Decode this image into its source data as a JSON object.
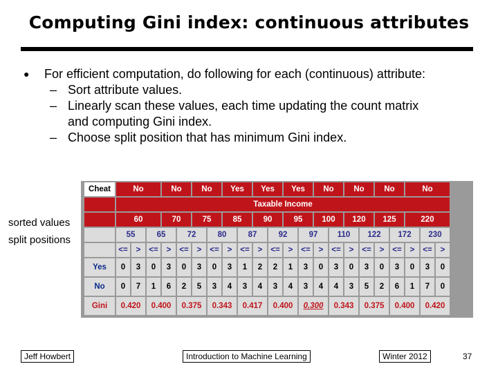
{
  "title": "Computing Gini index: continuous attributes",
  "bullet": {
    "dot": "l",
    "text": "For efficient computation, do following for each (continuous) attribute:",
    "subs": [
      "Sort attribute values.",
      "Linearly scan these values, each time updating the count matrix",
      "and computing Gini index.",
      "Choose split position that has minimum Gini index."
    ]
  },
  "side_labels": {
    "sorted": "sorted values",
    "split": "split positions"
  },
  "table": {
    "cheat_label": "Cheat",
    "cheat_values": [
      "No",
      "No",
      "No",
      "Yes",
      "Yes",
      "Yes",
      "No",
      "No",
      "No",
      "No"
    ],
    "header": "Taxable Income",
    "sorted_values": [
      "60",
      "70",
      "75",
      "85",
      "90",
      "95",
      "100",
      "120",
      "125",
      "220"
    ],
    "split_positions": [
      "55",
      "65",
      "72",
      "80",
      "87",
      "92",
      "97",
      "110",
      "122",
      "172",
      "230"
    ],
    "le": "<=",
    "gt": ">",
    "yes_label": "Yes",
    "no_label": "No",
    "gini_label": "Gini",
    "yes_counts": [
      [
        "0",
        "3"
      ],
      [
        "0",
        "3"
      ],
      [
        "0",
        "3"
      ],
      [
        "0",
        "3"
      ],
      [
        "1",
        "2"
      ],
      [
        "2",
        "1"
      ],
      [
        "3",
        "0"
      ],
      [
        "3",
        "0"
      ],
      [
        "3",
        "0"
      ],
      [
        "3",
        "0"
      ],
      [
        "3",
        "0"
      ]
    ],
    "no_counts": [
      [
        "0",
        "7"
      ],
      [
        "1",
        "6"
      ],
      [
        "2",
        "5"
      ],
      [
        "3",
        "4"
      ],
      [
        "3",
        "4"
      ],
      [
        "3",
        "4"
      ],
      [
        "3",
        "4"
      ],
      [
        "4",
        "3"
      ],
      [
        "5",
        "2"
      ],
      [
        "6",
        "1"
      ],
      [
        "7",
        "0"
      ]
    ],
    "gini_values": [
      "0.420",
      "0.400",
      "0.375",
      "0.343",
      "0.417",
      "0.400",
      "0.300",
      "0.343",
      "0.375",
      "0.400",
      "0.420"
    ],
    "gini_min_index": 6
  },
  "footer": {
    "author": "Jeff Howbert",
    "course": "Introduction to Machine Learning",
    "term": "Winter 2012",
    "page": "37"
  }
}
